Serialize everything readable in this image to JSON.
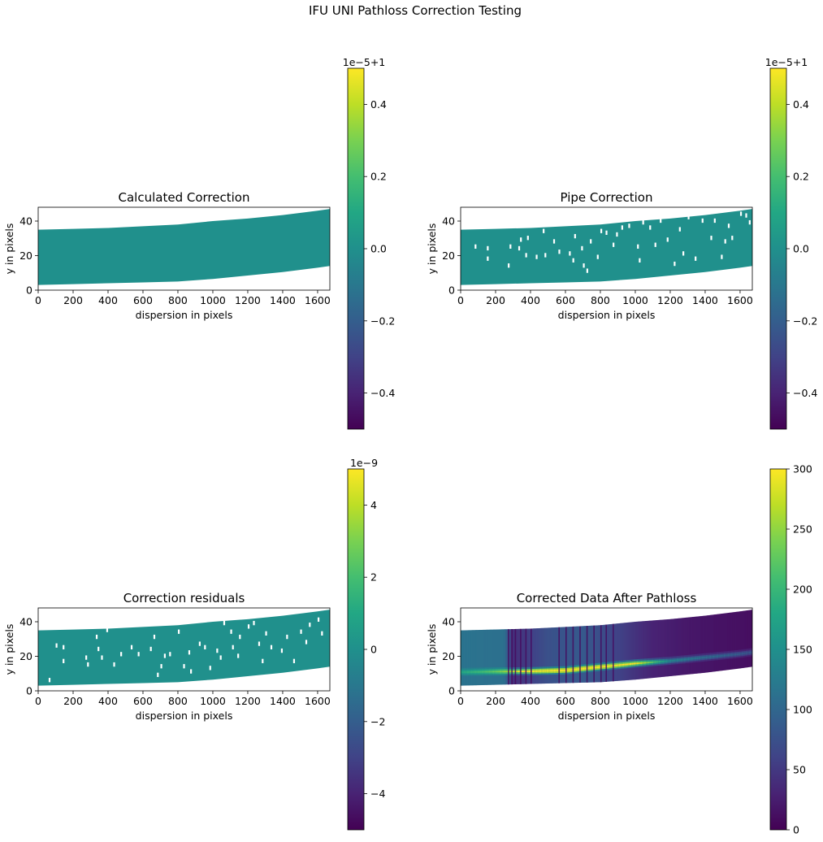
{
  "figure": {
    "suptitle": "IFU UNI Pathloss Correction Testing"
  },
  "chart_data": [
    {
      "type": "heatmap",
      "title": "Calculated Correction",
      "xlabel": "dispersion in pixels",
      "ylabel": "y in pixels",
      "xlim": [
        0,
        1670
      ],
      "ylim": [
        0,
        48
      ],
      "xticks": [
        "0",
        "200",
        "400",
        "600",
        "800",
        "1000",
        "1200",
        "1400",
        "1600"
      ],
      "yticks": [
        "0",
        "20",
        "40"
      ],
      "colormap": "viridis",
      "colorbar": {
        "range": [
          -0.5,
          0.5
        ],
        "ticks": [
          "−0.4",
          "−0.2",
          "0.0",
          "0.2",
          "0.4"
        ],
        "tick_values": [
          -0.4,
          -0.2,
          0.0,
          0.2,
          0.4
        ],
        "offset_text": "1e−5+1"
      },
      "strip": {
        "x": [
          0,
          200,
          400,
          600,
          800,
          1000,
          1200,
          1400,
          1600,
          1670
        ],
        "y_low": [
          3,
          3.5,
          4,
          4.5,
          5,
          6.5,
          8.5,
          10.5,
          13,
          14
        ],
        "y_high": [
          35,
          35.5,
          36,
          37,
          38,
          40,
          41.5,
          43.5,
          46,
          47
        ]
      },
      "fill_value": 0.0,
      "masked_columns": []
    },
    {
      "type": "heatmap",
      "title": "Pipe Correction",
      "xlabel": "dispersion in pixels",
      "ylabel": "y in pixels",
      "xlim": [
        0,
        1670
      ],
      "ylim": [
        0,
        48
      ],
      "xticks": [
        "0",
        "200",
        "400",
        "600",
        "800",
        "1000",
        "1200",
        "1400",
        "1600"
      ],
      "yticks": [
        "0",
        "20",
        "40"
      ],
      "colormap": "viridis",
      "colorbar": {
        "range": [
          -0.5,
          0.5
        ],
        "ticks": [
          "−0.4",
          "−0.2",
          "0.0",
          "0.2",
          "0.4"
        ],
        "tick_values": [
          -0.4,
          -0.2,
          0.0,
          0.2,
          0.4
        ],
        "offset_text": "1e−5+1"
      },
      "strip": {
        "x": [
          0,
          200,
          400,
          600,
          800,
          1000,
          1200,
          1400,
          1600,
          1670
        ],
        "y_low": [
          3,
          3.5,
          4,
          4.5,
          5,
          6.5,
          8.5,
          10.5,
          13,
          14
        ],
        "y_high": [
          35,
          35.5,
          36,
          37,
          38,
          40,
          41.5,
          43.5,
          46,
          47
        ]
      },
      "fill_value": 0.0,
      "masked_columns": [
        [
          80,
          24
        ],
        [
          150,
          23
        ],
        [
          150,
          17
        ],
        [
          270,
          13
        ],
        [
          280,
          24
        ],
        [
          330,
          23
        ],
        [
          340,
          28
        ],
        [
          370,
          19
        ],
        [
          380,
          29
        ],
        [
          430,
          18
        ],
        [
          470,
          33
        ],
        [
          480,
          19
        ],
        [
          530,
          27
        ],
        [
          560,
          21
        ],
        [
          620,
          20
        ],
        [
          640,
          16
        ],
        [
          650,
          30
        ],
        [
          690,
          23
        ],
        [
          700,
          13
        ],
        [
          720,
          10
        ],
        [
          740,
          27
        ],
        [
          780,
          18
        ],
        [
          800,
          33
        ],
        [
          830,
          32
        ],
        [
          870,
          25
        ],
        [
          890,
          31
        ],
        [
          920,
          35
        ],
        [
          960,
          36
        ],
        [
          1010,
          24
        ],
        [
          1020,
          16
        ],
        [
          1040,
          38
        ],
        [
          1080,
          35
        ],
        [
          1110,
          25
        ],
        [
          1140,
          39
        ],
        [
          1180,
          28
        ],
        [
          1220,
          14
        ],
        [
          1250,
          34
        ],
        [
          1270,
          20
        ],
        [
          1300,
          41
        ],
        [
          1340,
          17
        ],
        [
          1380,
          39
        ],
        [
          1430,
          29
        ],
        [
          1450,
          39
        ],
        [
          1490,
          18
        ],
        [
          1510,
          27
        ],
        [
          1530,
          36
        ],
        [
          1550,
          29
        ],
        [
          1600,
          43
        ],
        [
          1630,
          42
        ],
        [
          1650,
          38
        ]
      ]
    },
    {
      "type": "heatmap",
      "title": "Correction residuals",
      "xlabel": "dispersion in pixels",
      "ylabel": "y in pixels",
      "xlim": [
        0,
        1670
      ],
      "ylim": [
        0,
        48
      ],
      "xticks": [
        "0",
        "200",
        "400",
        "600",
        "800",
        "1000",
        "1200",
        "1400",
        "1600"
      ],
      "yticks": [
        "0",
        "20",
        "40"
      ],
      "colormap": "viridis",
      "colorbar": {
        "range": [
          -5,
          5
        ],
        "ticks": [
          "−4",
          "−2",
          "0",
          "2",
          "4"
        ],
        "tick_values": [
          -4,
          -2,
          0,
          2,
          4
        ],
        "offset_text": "1e−9"
      },
      "strip": {
        "x": [
          0,
          200,
          400,
          600,
          800,
          1000,
          1200,
          1400,
          1600,
          1670
        ],
        "y_low": [
          3,
          3.5,
          4,
          4.5,
          5,
          6.5,
          8.5,
          10.5,
          13,
          14
        ],
        "y_high": [
          35,
          35.5,
          36,
          37,
          38,
          40,
          41.5,
          43.5,
          46,
          47
        ]
      },
      "fill_value": 0.0,
      "masked_columns": [
        [
          60,
          5
        ],
        [
          100,
          25
        ],
        [
          140,
          24
        ],
        [
          140,
          16
        ],
        [
          270,
          18
        ],
        [
          280,
          14
        ],
        [
          330,
          30
        ],
        [
          340,
          23
        ],
        [
          360,
          18
        ],
        [
          390,
          34
        ],
        [
          430,
          14
        ],
        [
          470,
          20
        ],
        [
          530,
          24
        ],
        [
          570,
          20
        ],
        [
          640,
          23
        ],
        [
          660,
          30
        ],
        [
          680,
          8
        ],
        [
          700,
          13
        ],
        [
          720,
          19
        ],
        [
          750,
          20
        ],
        [
          800,
          33
        ],
        [
          830,
          13
        ],
        [
          860,
          21
        ],
        [
          870,
          10
        ],
        [
          920,
          26
        ],
        [
          950,
          24
        ],
        [
          980,
          12
        ],
        [
          1020,
          22
        ],
        [
          1040,
          18
        ],
        [
          1060,
          38
        ],
        [
          1100,
          33
        ],
        [
          1110,
          24
        ],
        [
          1140,
          19
        ],
        [
          1150,
          30
        ],
        [
          1200,
          36
        ],
        [
          1230,
          38
        ],
        [
          1260,
          26
        ],
        [
          1280,
          16
        ],
        [
          1300,
          32
        ],
        [
          1330,
          24
        ],
        [
          1360,
          44
        ],
        [
          1390,
          22
        ],
        [
          1420,
          30
        ],
        [
          1440,
          45
        ],
        [
          1460,
          16
        ],
        [
          1500,
          33
        ],
        [
          1530,
          27
        ],
        [
          1550,
          37
        ],
        [
          1600,
          40
        ],
        [
          1620,
          32
        ]
      ]
    },
    {
      "type": "heatmap",
      "title": "Corrected Data After Pathloss",
      "xlabel": "dispersion in pixels",
      "ylabel": "y in pixels",
      "xlim": [
        0,
        1670
      ],
      "ylim": [
        0,
        48
      ],
      "xticks": [
        "0",
        "200",
        "400",
        "600",
        "800",
        "1000",
        "1200",
        "1400",
        "1600"
      ],
      "yticks": [
        "0",
        "20",
        "40"
      ],
      "colormap": "viridis",
      "colorbar": {
        "range": [
          0,
          300
        ],
        "ticks": [
          "0",
          "50",
          "100",
          "150",
          "200",
          "250",
          "300"
        ],
        "tick_values": [
          0,
          50,
          100,
          150,
          200,
          250,
          300
        ],
        "offset_text": ""
      },
      "strip": {
        "x": [
          0,
          200,
          400,
          600,
          800,
          1000,
          1200,
          1400,
          1600,
          1670
        ],
        "y_low": [
          3,
          3.5,
          4,
          4.5,
          5,
          6.5,
          8.5,
          10.5,
          13,
          14
        ],
        "y_high": [
          35,
          35.5,
          36,
          37,
          38,
          40,
          41.5,
          43.5,
          46,
          47
        ]
      },
      "background_profile": {
        "x": [
          0,
          250,
          300,
          500,
          700,
          900,
          1100,
          1300,
          1500,
          1670
        ],
        "values": [
          115,
          110,
          40,
          75,
          85,
          60,
          30,
          20,
          15,
          12
        ]
      },
      "trace": {
        "x": [
          0,
          200,
          400,
          600,
          800,
          1000,
          1200,
          1400,
          1600,
          1670
        ],
        "center_y": [
          11,
          11.3,
          11.5,
          12,
          14,
          16,
          17.5,
          19.5,
          21.5,
          22.5
        ],
        "peak": [
          180,
          230,
          320,
          350,
          340,
          300,
          140,
          110,
          90,
          80
        ]
      },
      "dark_columns_x": [
        270,
        290,
        310,
        340,
        370,
        400,
        560,
        600,
        640,
        680,
        720,
        760,
        800,
        830,
        870
      ]
    }
  ]
}
